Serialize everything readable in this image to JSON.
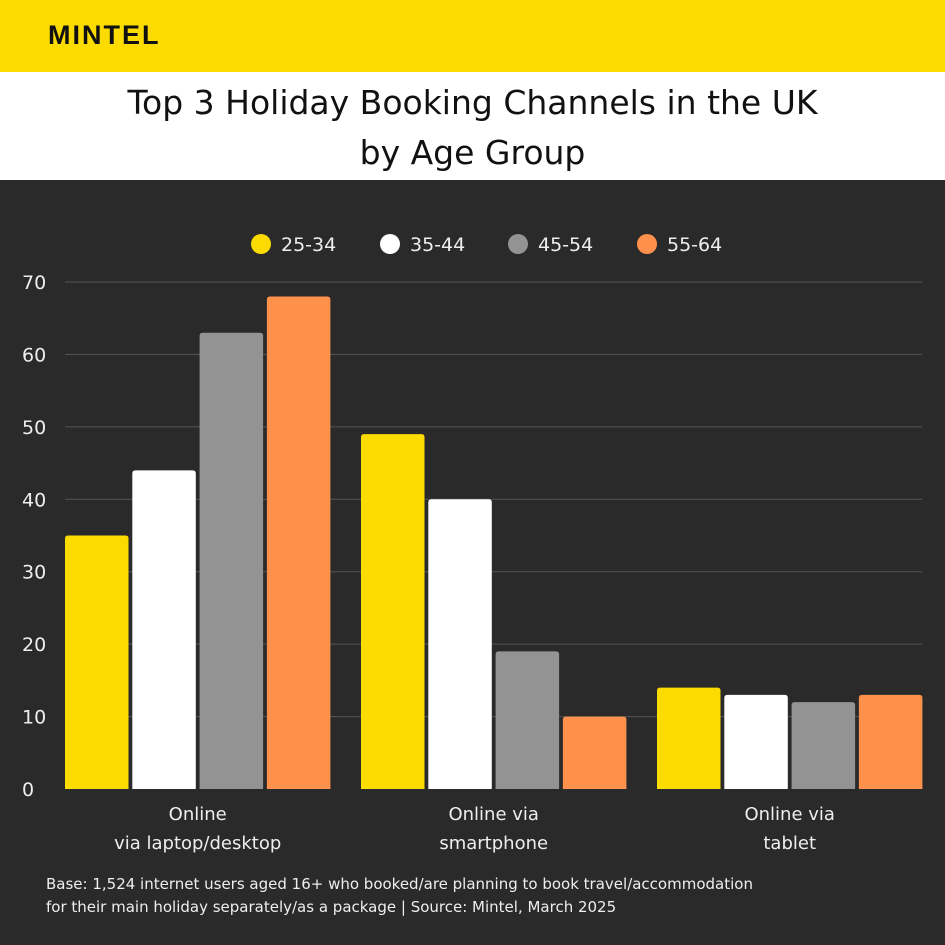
{
  "brand": {
    "logo": "MINTEL",
    "colors": {
      "header": "#FCDB00",
      "background": "#2a2a2a"
    }
  },
  "title": "Top 3 Holiday Booking Channels in the UK\nby Age Group",
  "chart_data": {
    "type": "bar",
    "categories": [
      [
        "Online",
        "via laptop/desktop"
      ],
      [
        "Online via",
        "smartphone"
      ],
      [
        "Online via",
        "tablet"
      ]
    ],
    "series": [
      {
        "name": "25-34",
        "color": "#FCDB00",
        "values": [
          35,
          49,
          14
        ]
      },
      {
        "name": "35-44",
        "color": "#FFFFFF",
        "values": [
          44,
          40,
          13
        ]
      },
      {
        "name": "45-54",
        "color": "#939393",
        "values": [
          63,
          19,
          12
        ]
      },
      {
        "name": "55-64",
        "color": "#FF914D",
        "values": [
          68,
          10,
          13
        ]
      }
    ],
    "ylim": [
      0,
      70
    ],
    "yticks": [
      0,
      10,
      20,
      30,
      40,
      50,
      60,
      70
    ],
    "grid": true,
    "legend": "top-center"
  },
  "footer": {
    "lines": [
      "Base: 1,524 internet users aged 16+ who booked/are planning to book travel/accommodation",
      "for their main holiday separately/as a package | Source: Mintel, March 2025"
    ]
  }
}
